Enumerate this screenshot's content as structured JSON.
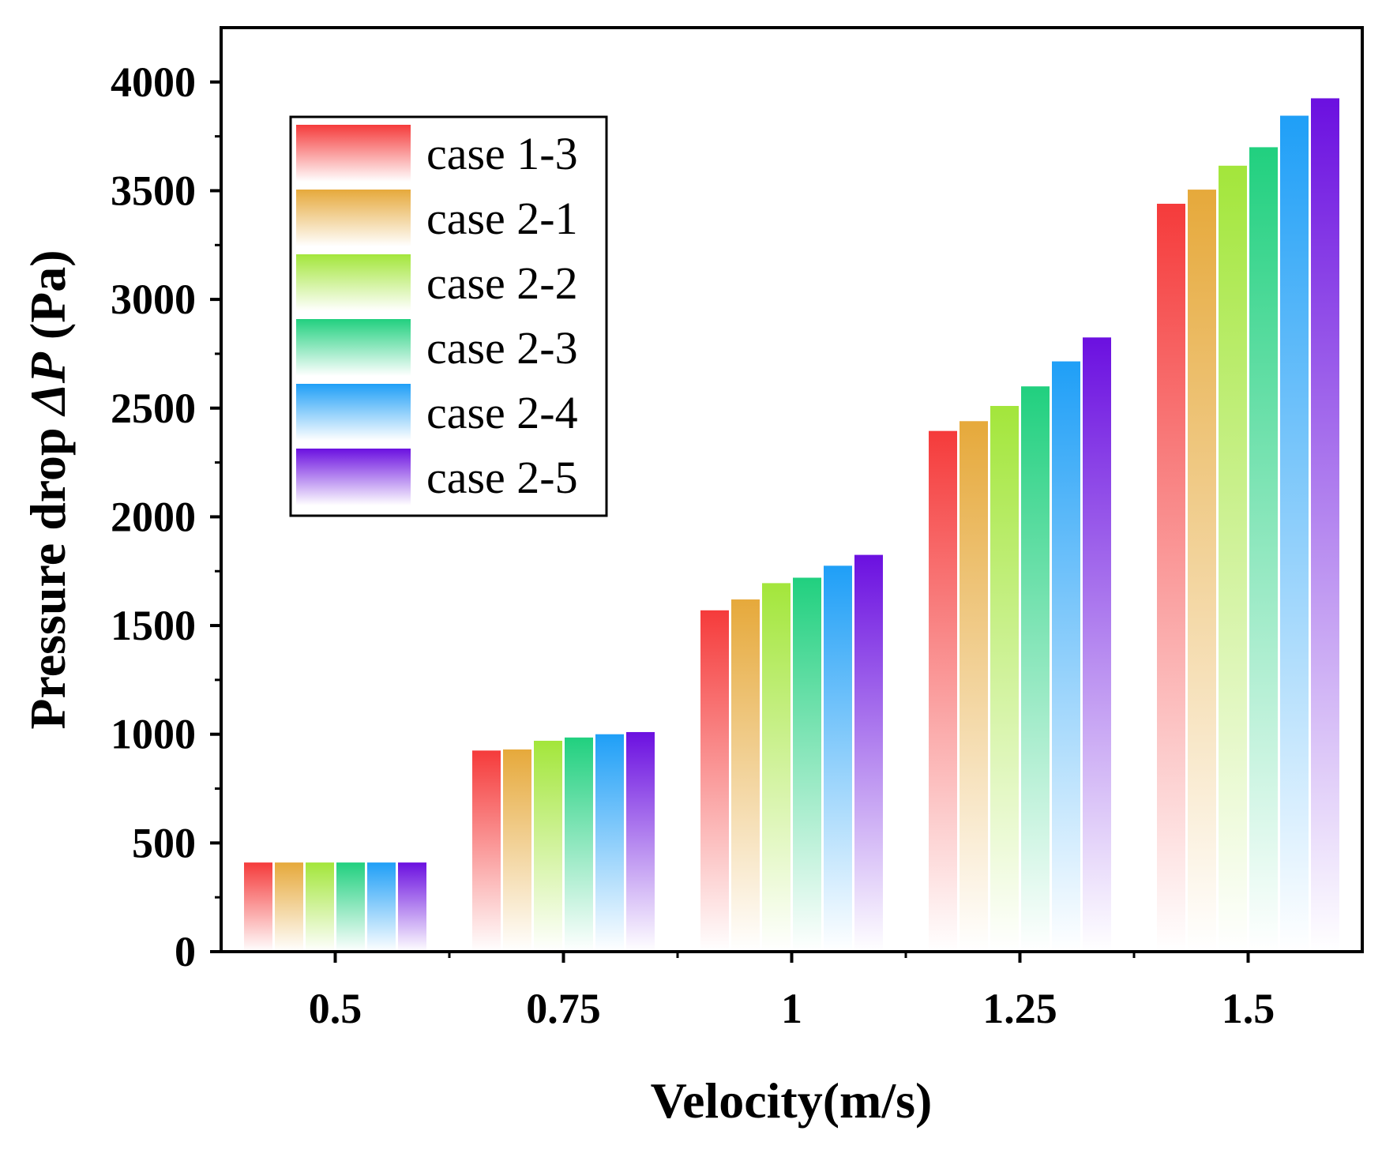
{
  "chart_data": {
    "type": "bar",
    "title": "",
    "xlabel": "Velocity(m/s)",
    "ylabel_prefix": "Pressure drop ",
    "ylabel_symbol": "ΔP",
    "ylabel_suffix": " (Pa)",
    "ylim": [
      0,
      4250
    ],
    "yticks": [
      0,
      500,
      1000,
      1500,
      2000,
      2500,
      3000,
      3500,
      4000
    ],
    "ytick_labels": [
      "0",
      "500",
      "1000",
      "1500",
      "2000",
      "2500",
      "3000",
      "3500",
      "4000"
    ],
    "categories": [
      "0.5",
      "0.75",
      "1",
      "1.25",
      "1.5"
    ],
    "legend_position": "top-left",
    "series": [
      {
        "name": "case 1-3",
        "color": "#f53b3b",
        "values": [
          410,
          925,
          1570,
          2395,
          3440
        ]
      },
      {
        "name": "case 2-1",
        "color": "#e6a93b",
        "values": [
          410,
          930,
          1620,
          2440,
          3505
        ]
      },
      {
        "name": "case 2-2",
        "color": "#a3e63b",
        "values": [
          410,
          970,
          1695,
          2510,
          3615
        ]
      },
      {
        "name": "case 2-3",
        "color": "#21d07f",
        "values": [
          410,
          985,
          1720,
          2600,
          3700
        ]
      },
      {
        "name": "case 2-4",
        "color": "#1f9ff7",
        "values": [
          410,
          1000,
          1775,
          2715,
          3845
        ]
      },
      {
        "name": "case 2-5",
        "color": "#6b10e0",
        "values": [
          410,
          1010,
          1825,
          2825,
          3925
        ]
      }
    ]
  }
}
